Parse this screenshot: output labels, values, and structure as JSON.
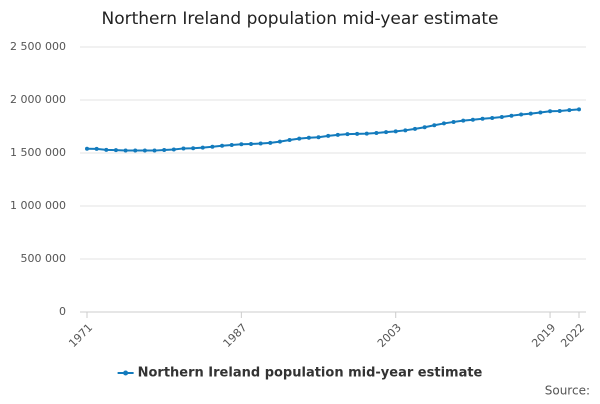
{
  "chart_data": {
    "type": "line",
    "title": "Northern Ireland population mid-year estimate",
    "source": "Source:",
    "x": [
      1971,
      1972,
      1973,
      1974,
      1975,
      1976,
      1977,
      1978,
      1979,
      1980,
      1981,
      1982,
      1983,
      1984,
      1985,
      1986,
      1987,
      1988,
      1989,
      1990,
      1991,
      1992,
      1993,
      1994,
      1995,
      1996,
      1997,
      1998,
      1999,
      2000,
      2001,
      2002,
      2003,
      2004,
      2005,
      2006,
      2007,
      2008,
      2009,
      2010,
      2011,
      2012,
      2013,
      2014,
      2015,
      2016,
      2017,
      2018,
      2019,
      2020,
      2021,
      2022
    ],
    "series": [
      {
        "name": "Northern Ireland population mid-year estimate",
        "color": "#137bbd",
        "values": [
          1540000,
          1539000,
          1530000,
          1527000,
          1524000,
          1524000,
          1523000,
          1523000,
          1528000,
          1533000,
          1543000,
          1545000,
          1551000,
          1559000,
          1568000,
          1576000,
          1582000,
          1585000,
          1590000,
          1596000,
          1607000,
          1623000,
          1636000,
          1644000,
          1649000,
          1662000,
          1671000,
          1678000,
          1680000,
          1683000,
          1689000,
          1697000,
          1704000,
          1714000,
          1728000,
          1743000,
          1762000,
          1779000,
          1793000,
          1805000,
          1814000,
          1823000,
          1830000,
          1840000,
          1852000,
          1863000,
          1871000,
          1882000,
          1894000,
          1896000,
          1904000,
          1911000
        ]
      }
    ],
    "xlim": [
      1971,
      2022
    ],
    "xticks": [
      1971,
      1987,
      2003,
      2019,
      2022
    ],
    "ylim": [
      0,
      2500000
    ],
    "yticks": [
      0,
      {
        "value": 500000,
        "label": "500 000"
      },
      {
        "value": 1000000,
        "label": "1 000 000"
      },
      {
        "value": 1500000,
        "label": "1 500 000"
      },
      {
        "value": 2000000,
        "label": "2 000 000"
      },
      {
        "value": 2500000,
        "label": "2 500 000"
      }
    ],
    "grid": true,
    "legend": "bottom"
  }
}
